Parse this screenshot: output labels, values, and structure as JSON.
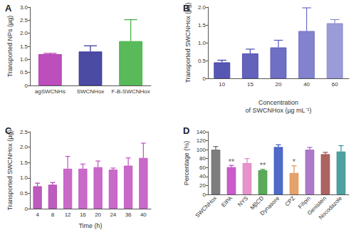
{
  "chart_data": [
    {
      "type": "bar",
      "title": "A",
      "categories": [
        "agSWCNHs",
        "SWCNHox",
        "F-B-SWCNHox"
      ],
      "values": [
        1.2,
        1.3,
        1.7
      ],
      "errors": [
        0.03,
        0.22,
        0.82
      ],
      "colors": [
        "#b030b0",
        "#2c2c94",
        "#3cae3c"
      ],
      "ylabel": "Transported NPs (µg)",
      "ylim": [
        0,
        3
      ],
      "yticks": [
        0,
        0.5,
        {
          "value": 1,
          "label": "1.0"
        },
        1.5,
        {
          "value": 2,
          "label": "2.0"
        },
        2.5,
        {
          "value": 3,
          "label": "3.0"
        }
      ],
      "grid": false
    },
    {
      "type": "bar",
      "title": "B",
      "categories": [
        "10",
        "15",
        "20",
        "40",
        "60"
      ],
      "values": [
        0.45,
        0.7,
        0.87,
        1.33,
        1.55
      ],
      "errors": [
        0.06,
        0.12,
        0.2,
        0.65,
        0.1
      ],
      "colors": [
        "#3a3aa6",
        "#4848b0",
        "#5656ba",
        "#6c6cc6",
        "#8a8ad2"
      ],
      "xlabel": "Concentration\nof SWCNHox (µg mL⁻¹)",
      "ylabel": "Transported SWCNHox (µg)",
      "ylim": [
        0,
        2
      ],
      "yticks": [
        0,
        0.5,
        {
          "value": 1,
          "label": "1.0"
        },
        1.5,
        {
          "value": 2,
          "label": "2.0"
        }
      ],
      "grid": false
    },
    {
      "type": "bar",
      "title": "C",
      "categories": [
        "4",
        "8",
        "12",
        "16",
        "20",
        "24",
        "36",
        "40"
      ],
      "values": [
        0.73,
        0.78,
        1.3,
        1.3,
        1.35,
        1.27,
        1.4,
        1.65
      ],
      "errors": [
        0.1,
        0.07,
        0.4,
        0.15,
        0.2,
        0.05,
        0.25,
        0.48
      ],
      "colors": [
        "#b040b0",
        "#b040b0",
        "#c050c0",
        "#c050c0",
        "#c050c0",
        "#c050c0",
        "#c050c0",
        "#c050c0"
      ],
      "xlabel": "Time (h)",
      "ylabel": "Transported SWCNHox (µg)",
      "ylim": [
        0,
        2.5
      ],
      "yticks": [
        0,
        0.5,
        {
          "value": 1,
          "label": "1.0"
        },
        1.5,
        {
          "value": 2,
          "label": "2.0"
        },
        2.5
      ],
      "grid": false
    },
    {
      "type": "bar",
      "title": "D",
      "categories": [
        "SWCNHox",
        "EIPA",
        "NYS",
        "MβCD",
        "Dynasore",
        "CPZ",
        "Filipin",
        "Genistein",
        "Nocodazole"
      ],
      "values": [
        100,
        61,
        70,
        54,
        106,
        48,
        100,
        90,
        96
      ],
      "errors": [
        7,
        4,
        10,
        2,
        5,
        16,
        5,
        4,
        13
      ],
      "colors": [
        "#666666",
        "#c040c0",
        "#e080c0",
        "#3c9c3c",
        "#3050c0",
        "#e09050",
        "#a060c0",
        "#a04848",
        "#309090"
      ],
      "ylabel": "Percentage (%)",
      "ylim": [
        0,
        140
      ],
      "yticks": [
        0,
        20,
        40,
        60,
        80,
        100,
        120,
        140
      ],
      "annotations": [
        {
          "category": "EIPA",
          "text": "**"
        },
        {
          "category": "MβCD",
          "text": "**"
        },
        {
          "category": "CPZ",
          "text": "*"
        }
      ],
      "grid": false
    }
  ]
}
